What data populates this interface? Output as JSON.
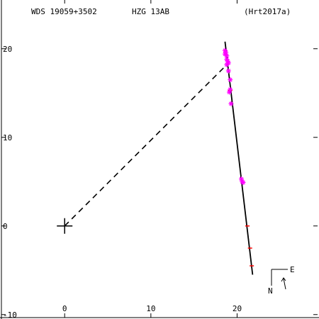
{
  "header": {
    "star_id": "WDS 19059+3502",
    "discoverer": "HZG  13AB",
    "reference": "(Hrt2017a)"
  },
  "orientation": {
    "east_label": "E",
    "north_label": "N"
  },
  "colors": {
    "background": "#ffffff",
    "axis": "#000000",
    "orbit": "#000000",
    "observations": "#ff00ff",
    "residual": "#ff0000"
  },
  "chart_data": {
    "type": "scatter",
    "title": "",
    "xlabel": "",
    "ylabel": "",
    "xlim": [
      -7.5,
      29.5
    ],
    "ylim": [
      -10.5,
      25.5
    ],
    "x_ticks": [
      0,
      10,
      20
    ],
    "y_ticks": [
      -10,
      0,
      10,
      20
    ],
    "x_tick_labels": [
      "0",
      "10",
      "20"
    ],
    "y_tick_labels": [
      "-10",
      "0",
      "10",
      "20"
    ],
    "grid": false,
    "primary": [
      0,
      0
    ],
    "node_line": {
      "from": [
        0,
        0
      ],
      "to": [
        18.7,
        18.1
      ]
    },
    "orbit_track": [
      [
        18.6,
        20.8
      ],
      [
        21.8,
        -5.5
      ]
    ],
    "observations": [
      [
        18.6,
        19.8
      ],
      [
        18.7,
        19.6
      ],
      [
        18.6,
        19.4
      ],
      [
        18.8,
        19.2
      ],
      [
        18.8,
        18.8
      ],
      [
        18.9,
        18.6
      ],
      [
        19.0,
        18.4
      ],
      [
        18.8,
        18.2
      ],
      [
        19.0,
        17.5
      ],
      [
        19.2,
        16.5
      ],
      [
        19.2,
        15.4
      ],
      [
        19.1,
        15.1
      ],
      [
        19.3,
        13.8
      ],
      [
        20.5,
        5.3
      ],
      [
        20.6,
        5.0
      ],
      [
        20.7,
        4.9
      ]
    ],
    "residual_marks": [
      [
        19.2,
        15.3
      ],
      [
        21.2,
        0.0
      ],
      [
        21.5,
        -2.5
      ],
      [
        21.7,
        -4.5
      ]
    ]
  }
}
